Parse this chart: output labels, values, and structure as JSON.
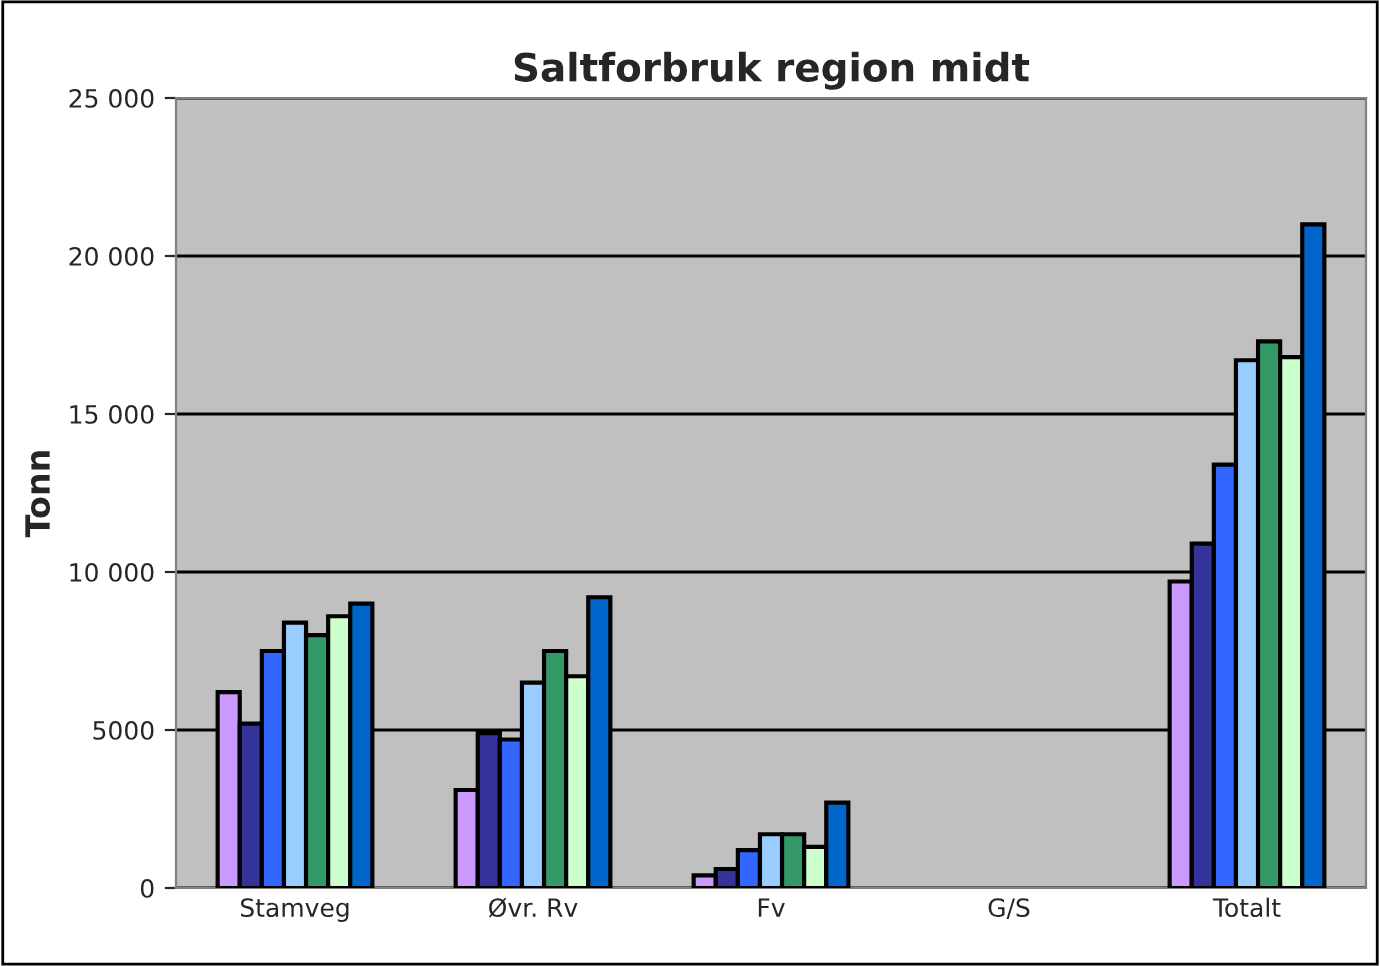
{
  "chart_data": {
    "type": "bar",
    "title": "Saltforbruk region midt",
    "ylabel": "Tonn",
    "categories": [
      "Stamveg",
      "Øvr. Rv",
      "Fv",
      "G/S",
      "Totalt"
    ],
    "series": [
      {
        "color": "#cc99ff",
        "values": [
          6200,
          3100,
          400,
          null,
          9700
        ]
      },
      {
        "color": "#333399",
        "values": [
          5200,
          4900,
          600,
          null,
          10900
        ]
      },
      {
        "color": "#3366ff",
        "values": [
          7500,
          4700,
          1200,
          null,
          13400
        ]
      },
      {
        "color": "#99ccff",
        "values": [
          8400,
          6500,
          1700,
          null,
          16700
        ]
      },
      {
        "color": "#339966",
        "values": [
          8000,
          7500,
          1700,
          null,
          17300
        ]
      },
      {
        "color": "#ccffcc",
        "values": [
          8600,
          6700,
          1300,
          null,
          16800
        ]
      },
      {
        "color": "#0066cc",
        "values": [
          9000,
          9200,
          2700,
          null,
          21000
        ]
      }
    ],
    "ylim": [
      0,
      25000
    ],
    "yticks": [
      0,
      5000,
      {
        "value": 10000,
        "label": "10 000"
      },
      {
        "value": 15000,
        "label": "15 000"
      },
      {
        "value": 20000,
        "label": "20 000"
      },
      {
        "value": 25000,
        "label": "25 000"
      }
    ],
    "grid": "y",
    "legend": false
  }
}
